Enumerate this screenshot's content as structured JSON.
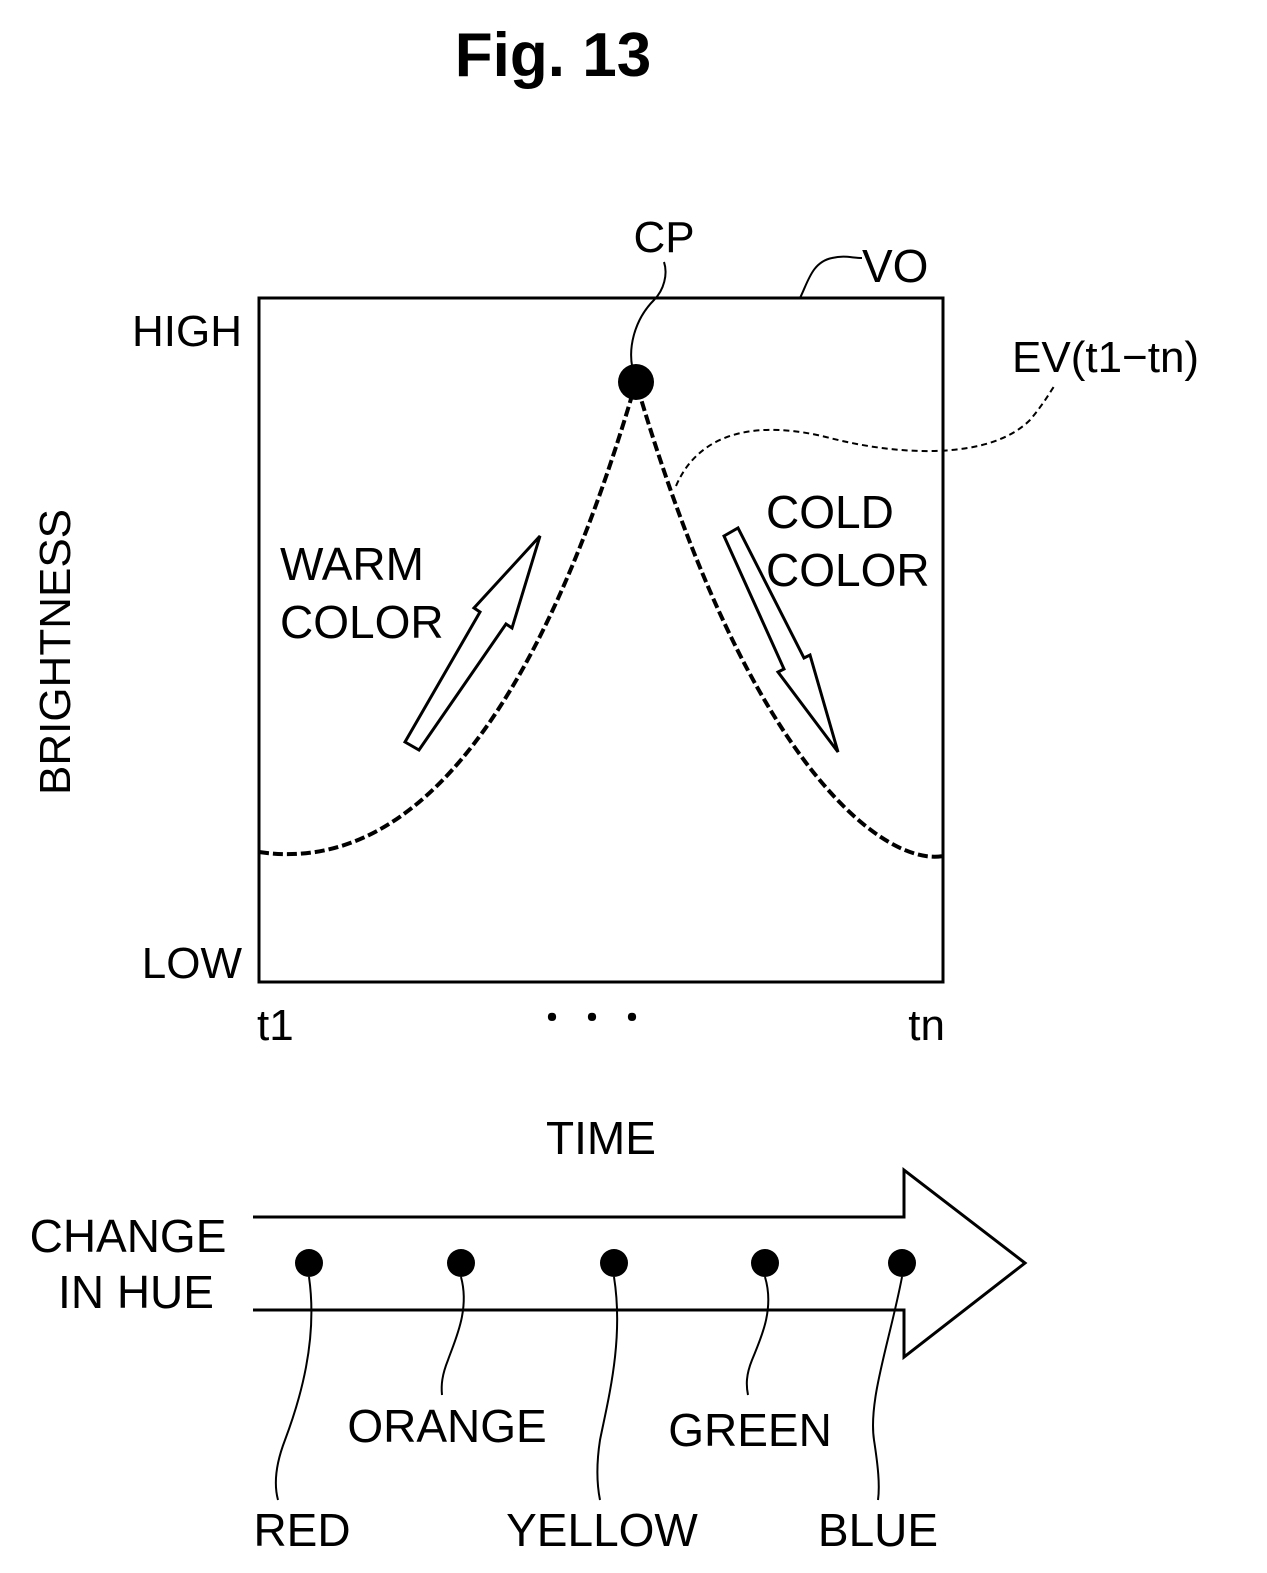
{
  "figure": {
    "title": "Fig. 13"
  },
  "graph": {
    "y_axis_label": "BRIGHTNESS",
    "y_high": "HIGH",
    "y_low": "LOW",
    "x_start": "t1",
    "x_ellipsis": "・・・",
    "x_end": "tn",
    "x_axis_label": "TIME",
    "frame_ref": "VO",
    "peak_ref": "CP",
    "curve_ref": "EV(t1−tn)",
    "warm_line1": "WARM",
    "warm_line2": "COLOR",
    "cold_line1": "COLD",
    "cold_line2": "COLOR"
  },
  "hue": {
    "label_line1": "CHANGE",
    "label_line2": "IN HUE",
    "colors": [
      "RED",
      "ORANGE",
      "YELLOW",
      "GREEN",
      "BLUE"
    ]
  },
  "colors": {
    "ink": "#000000",
    "paper": "#ffffff"
  }
}
